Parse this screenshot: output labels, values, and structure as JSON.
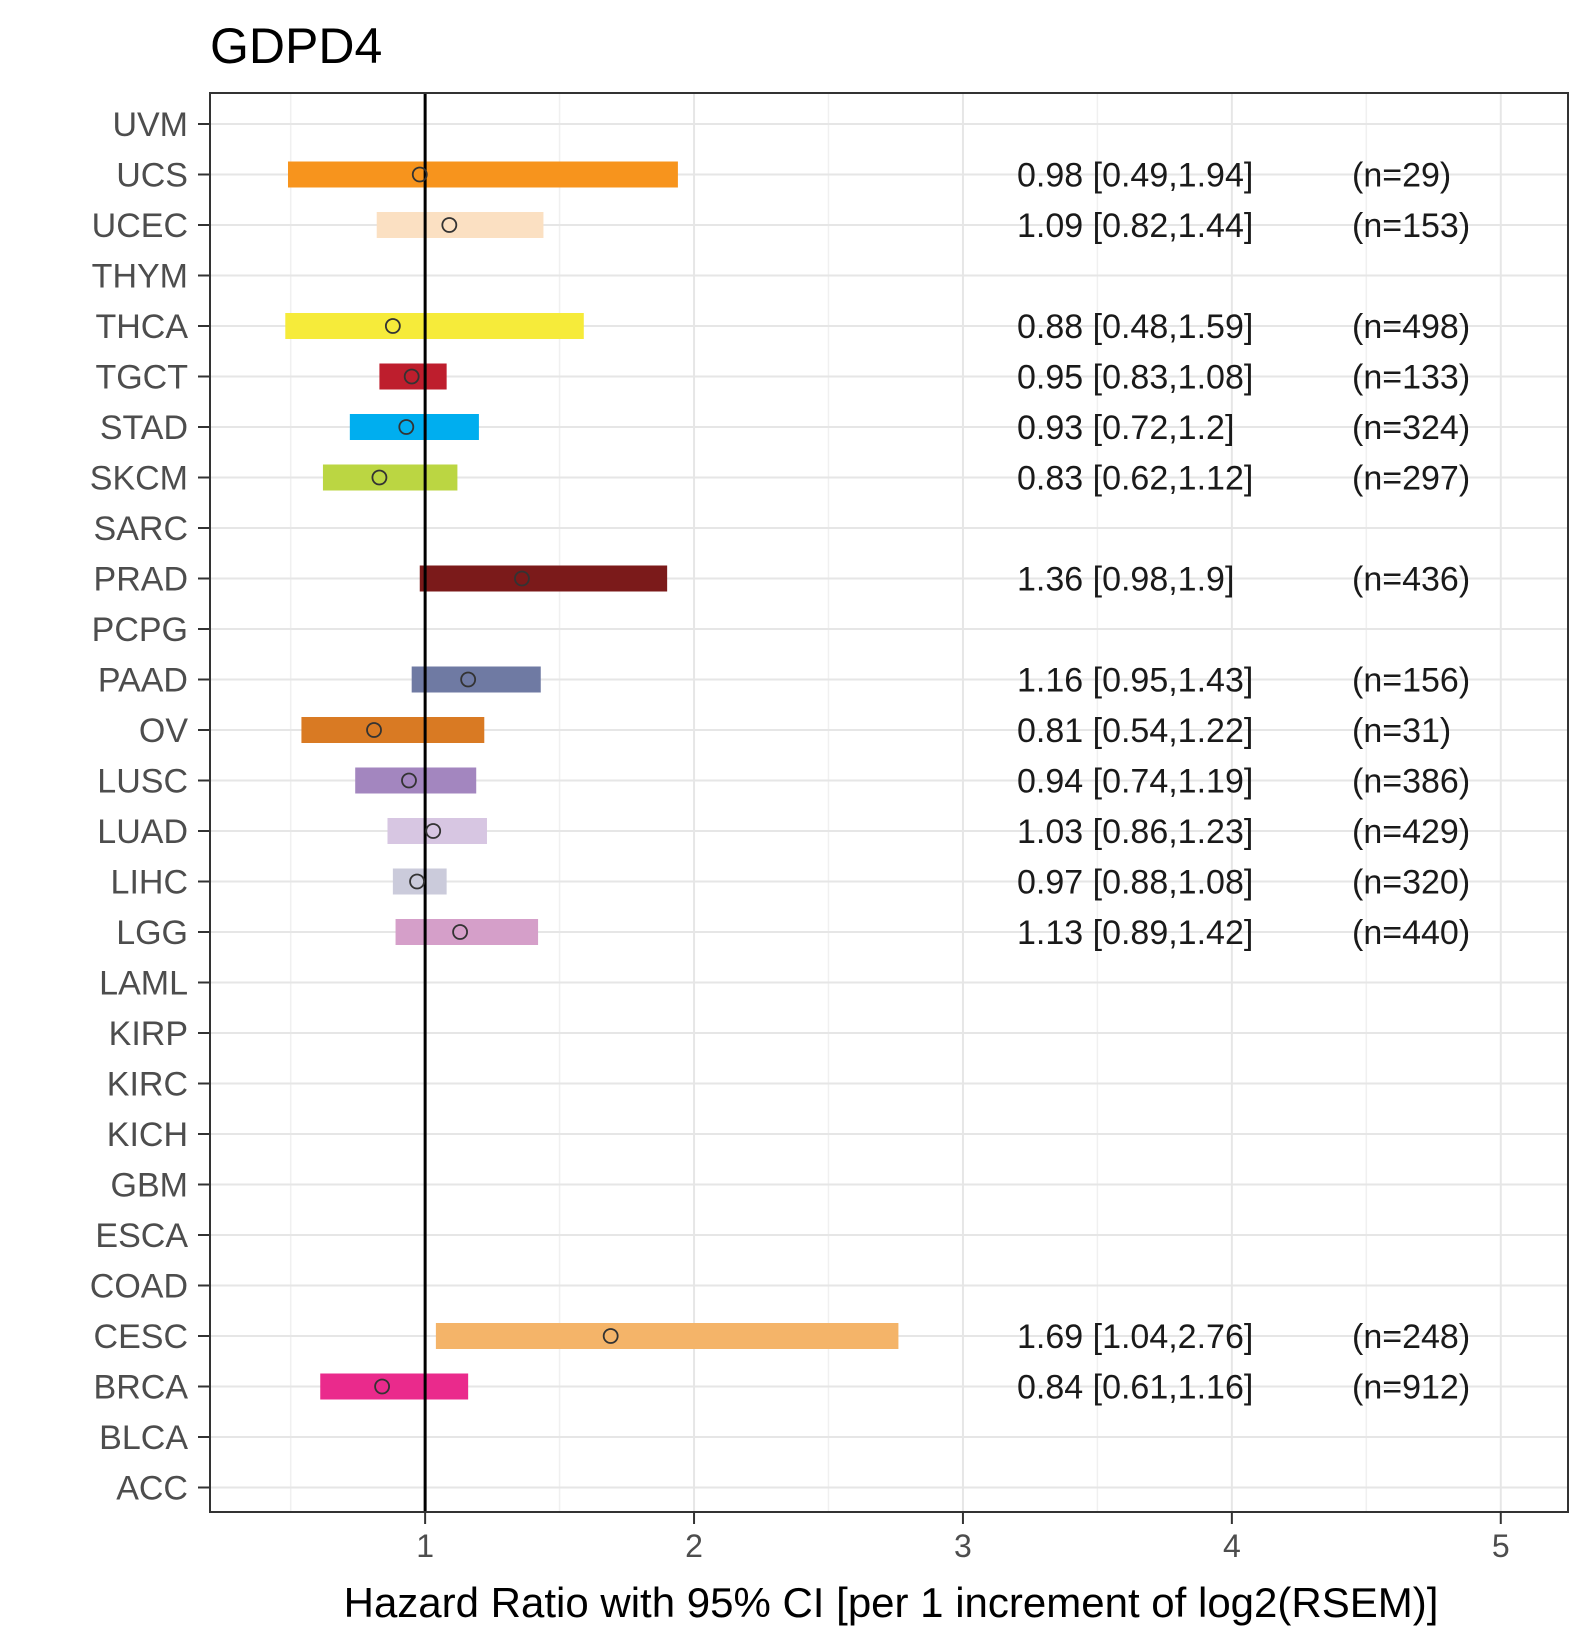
{
  "chart_data": {
    "type": "forest",
    "title": "GDPD4",
    "xlabel": "Hazard Ratio with 95% CI [per 1 increment of log2(RSEM)]",
    "ylabel": "",
    "xlim": [
      0.2,
      5.25
    ],
    "xticks": [
      1,
      2,
      3,
      4,
      5
    ],
    "xtick_labels": [
      "1",
      "2",
      "3",
      "4",
      "5"
    ],
    "reference_line": 1,
    "grid": true,
    "categories": [
      "UVM",
      "UCS",
      "UCEC",
      "THYM",
      "THCA",
      "TGCT",
      "STAD",
      "SKCM",
      "SARC",
      "PRAD",
      "PCPG",
      "PAAD",
      "OV",
      "LUSC",
      "LUAD",
      "LIHC",
      "LGG",
      "LAML",
      "KIRP",
      "KIRC",
      "KICH",
      "GBM",
      "ESCA",
      "COAD",
      "CESC",
      "BRCA",
      "BLCA",
      "ACC"
    ],
    "rows": [
      {
        "label": "UVM"
      },
      {
        "label": "UCS",
        "hr": 0.98,
        "lower": 0.49,
        "upper": 1.94,
        "ci_text": "0.98 [0.49,1.94]",
        "n_text": "(n=29)",
        "color": "#F7941D"
      },
      {
        "label": "UCEC",
        "hr": 1.09,
        "lower": 0.82,
        "upper": 1.44,
        "ci_text": "1.09 [0.82,1.44]",
        "n_text": "(n=153)",
        "color": "#FBE0C2"
      },
      {
        "label": "THYM"
      },
      {
        "label": "THCA",
        "hr": 0.88,
        "lower": 0.48,
        "upper": 1.59,
        "ci_text": "0.88 [0.48,1.59]",
        "n_text": "(n=498)",
        "color": "#F6EB3A"
      },
      {
        "label": "TGCT",
        "hr": 0.95,
        "lower": 0.83,
        "upper": 1.08,
        "ci_text": "0.95 [0.83,1.08]",
        "n_text": "(n=133)",
        "color": "#BE1E2D"
      },
      {
        "label": "STAD",
        "hr": 0.93,
        "lower": 0.72,
        "upper": 1.2,
        "ci_text": "0.93 [0.72,1.2]",
        "n_text": "(n=324)",
        "color": "#00AEEF"
      },
      {
        "label": "SKCM",
        "hr": 0.83,
        "lower": 0.62,
        "upper": 1.12,
        "ci_text": "0.83 [0.62,1.12]",
        "n_text": "(n=297)",
        "color": "#BBD642"
      },
      {
        "label": "SARC"
      },
      {
        "label": "PRAD",
        "hr": 1.36,
        "lower": 0.98,
        "upper": 1.9,
        "ci_text": "1.36 [0.98,1.9]",
        "n_text": "(n=436)",
        "color": "#7B1A1A"
      },
      {
        "label": "PCPG"
      },
      {
        "label": "PAAD",
        "hr": 1.16,
        "lower": 0.95,
        "upper": 1.43,
        "ci_text": "1.16 [0.95,1.43]",
        "n_text": "(n=156)",
        "color": "#6F7AA3"
      },
      {
        "label": "OV",
        "hr": 0.81,
        "lower": 0.54,
        "upper": 1.22,
        "ci_text": "0.81 [0.54,1.22]",
        "n_text": "(n=31)",
        "color": "#D97A23"
      },
      {
        "label": "LUSC",
        "hr": 0.94,
        "lower": 0.74,
        "upper": 1.19,
        "ci_text": "0.94 [0.74,1.19]",
        "n_text": "(n=386)",
        "color": "#A386BF"
      },
      {
        "label": "LUAD",
        "hr": 1.03,
        "lower": 0.86,
        "upper": 1.23,
        "ci_text": "1.03 [0.86,1.23]",
        "n_text": "(n=429)",
        "color": "#D7C6E2"
      },
      {
        "label": "LIHC",
        "hr": 0.97,
        "lower": 0.88,
        "upper": 1.08,
        "ci_text": "0.97 [0.88,1.08]",
        "n_text": "(n=320)",
        "color": "#CBCBDB"
      },
      {
        "label": "LGG",
        "hr": 1.13,
        "lower": 0.89,
        "upper": 1.42,
        "ci_text": "1.13 [0.89,1.42]",
        "n_text": "(n=440)",
        "color": "#D59FC9"
      },
      {
        "label": "LAML"
      },
      {
        "label": "KIRP"
      },
      {
        "label": "KIRC"
      },
      {
        "label": "KICH"
      },
      {
        "label": "GBM"
      },
      {
        "label": "ESCA"
      },
      {
        "label": "COAD"
      },
      {
        "label": "CESC",
        "hr": 1.69,
        "lower": 1.04,
        "upper": 2.76,
        "ci_text": "1.69 [1.04,2.76]",
        "n_text": "(n=248)",
        "color": "#F4B469"
      },
      {
        "label": "BRCA",
        "hr": 0.84,
        "lower": 0.61,
        "upper": 1.16,
        "ci_text": "0.84 [0.61,1.16]",
        "n_text": "(n=912)",
        "color": "#EA2A8C"
      },
      {
        "label": "BLCA"
      },
      {
        "label": "ACC"
      }
    ]
  }
}
